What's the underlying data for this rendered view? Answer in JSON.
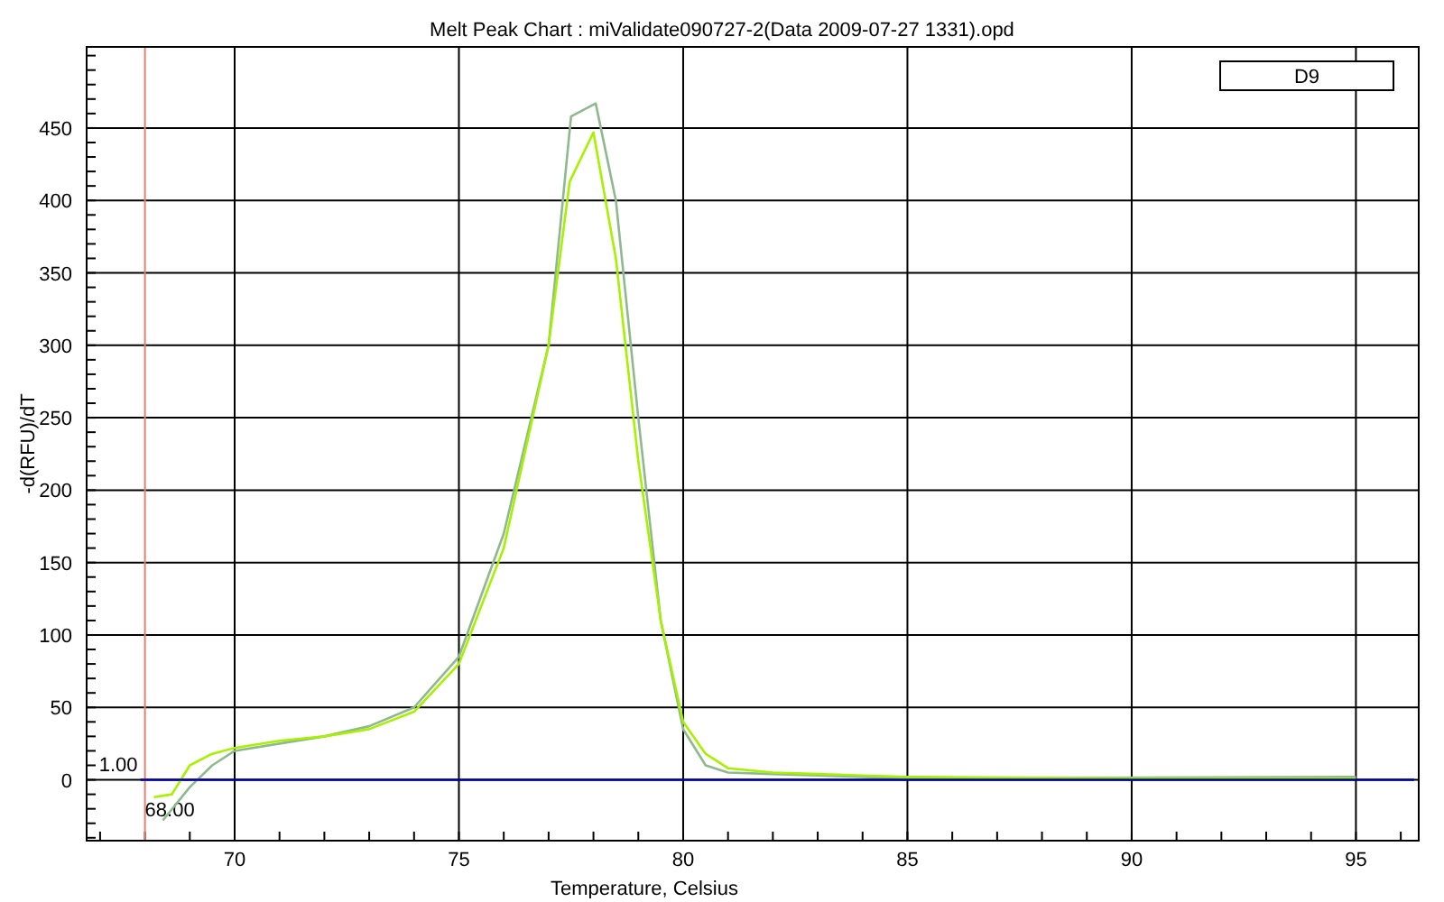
{
  "chart_data": {
    "type": "line",
    "title": "Melt Peak Chart : miValidate090727-2(Data 2009-07-27 1331).opd",
    "xlabel": "Temperature, Celsius",
    "ylabel": "-d(RFU)/dT",
    "xlim": [
      66.7,
      96.4
    ],
    "ylim": [
      -42,
      506
    ],
    "xticks": [
      70,
      75,
      80,
      85,
      90,
      95
    ],
    "yticks": [
      0,
      50,
      100,
      150,
      200,
      250,
      300,
      350,
      400,
      450
    ],
    "grid": true,
    "marker": "none",
    "line_style": "solid",
    "series": [
      {
        "color": "#8fb88f",
        "x": [
          68.4,
          69,
          69.5,
          70,
          71,
          72,
          73,
          74,
          75,
          76,
          77,
          77.5,
          78.05,
          78.5,
          79,
          79.5,
          80,
          80.5,
          81,
          82,
          83,
          85,
          95
        ],
        "values": [
          -28,
          -5,
          10,
          20,
          25,
          30,
          37,
          50,
          85,
          170,
          300,
          458,
          467,
          400,
          250,
          110,
          35,
          10,
          5,
          4,
          3,
          1,
          2
        ]
      },
      {
        "color": "#a6f000",
        "x": [
          68.2,
          68.6,
          69,
          69.5,
          70,
          71,
          72,
          73,
          74,
          75,
          76,
          77,
          77.47,
          78,
          78.5,
          79,
          79.5,
          80,
          80.5,
          81,
          82,
          83,
          84,
          85,
          90,
          95
        ],
        "values": [
          -12,
          -10,
          10,
          18,
          22,
          27,
          30,
          35,
          47,
          80,
          160,
          300,
          413,
          447,
          360,
          220,
          110,
          40,
          18,
          8,
          5,
          4,
          3,
          2,
          1,
          1
        ]
      },
      {
        "color": "#0000a0",
        "x": [
          67.9,
          96.3
        ],
        "values": [
          0,
          0
        ]
      }
    ],
    "ref_lines": [
      {
        "axis": "x",
        "value": 68,
        "label": "68.00",
        "color": "#e08070"
      }
    ],
    "annotations": [
      {
        "text": "1.00",
        "x": 68,
        "y": 1
      },
      "D9"
    ]
  }
}
